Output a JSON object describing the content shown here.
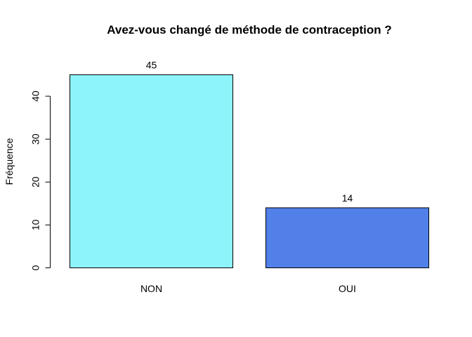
{
  "chart_data": {
    "type": "bar",
    "title": "Avez-vous changé de méthode de contraception ?",
    "xlabel": "",
    "ylabel": "Fréquence",
    "categories": [
      "NON",
      "OUI"
    ],
    "values": [
      45,
      14
    ],
    "value_labels": [
      "45",
      "14"
    ],
    "colors": [
      "#8ef4fc",
      "#5080e8"
    ],
    "ylim": [
      0,
      45
    ],
    "yticks": [
      0,
      10,
      20,
      30,
      40
    ],
    "ytick_labels": [
      "0",
      "10",
      "20",
      "30",
      "40"
    ],
    "grid": false,
    "legend": "none"
  }
}
